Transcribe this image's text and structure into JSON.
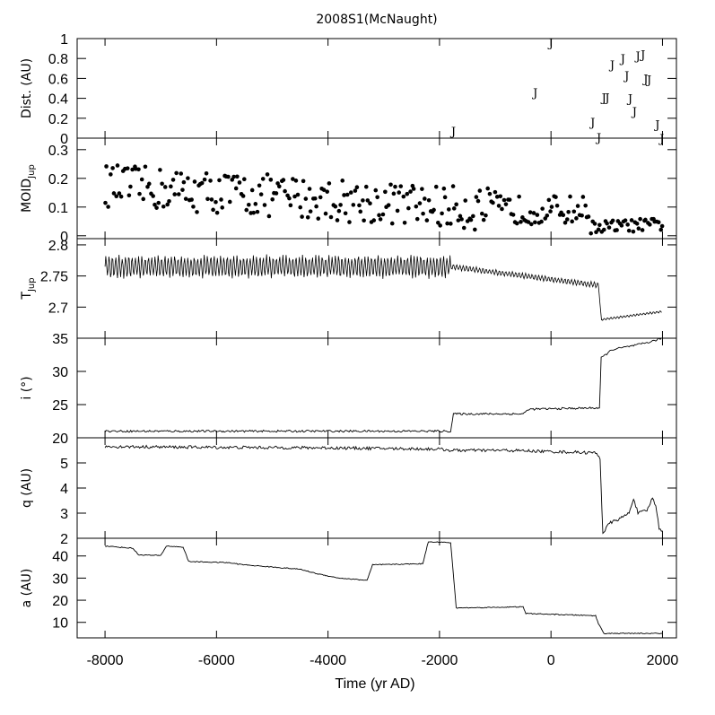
{
  "chart_data": {
    "title": "2008S1(McNaught)",
    "type": "multi-panel",
    "shared_x": {
      "label": "Time (yr AD)",
      "lim": [
        -8500,
        2250
      ],
      "ticks": [
        -8000,
        -6000,
        -4000,
        -2000,
        0,
        2000
      ],
      "tick_labels": [
        "-8000",
        "-6000",
        "-4000",
        "-2000",
        "0",
        "2000"
      ]
    },
    "panels": [
      {
        "key": "dist",
        "type": "scatter",
        "marker_label": "J",
        "ylabel": "Dist. (AU)",
        "ylim": [
          0,
          1
        ],
        "yticks": [
          0,
          0.2,
          0.4,
          0.6,
          0.8,
          1
        ],
        "ytick_labels": [
          "0",
          "0.2",
          "0.4",
          "0.6",
          "0.8",
          "1"
        ],
        "points": [
          [
            -1750,
            0.08
          ],
          [
            -280,
            0.47
          ],
          [
            0,
            0.97
          ],
          [
            750,
            0.17
          ],
          [
            860,
            0.02
          ],
          [
            950,
            0.42
          ],
          [
            1010,
            0.42
          ],
          [
            1100,
            0.75
          ],
          [
            1290,
            0.81
          ],
          [
            1360,
            0.64
          ],
          [
            1420,
            0.41
          ],
          [
            1500,
            0.28
          ],
          [
            1560,
            0.84
          ],
          [
            1650,
            0.85
          ],
          [
            1700,
            0.61
          ],
          [
            1760,
            0.6
          ],
          [
            1910,
            0.15
          ],
          [
            1990,
            0.01
          ]
        ]
      },
      {
        "key": "moid",
        "type": "scatter",
        "marker": "dot",
        "ylabel": "MOID",
        "ylabel_sub": "Jup",
        "ylim": [
          -0.01,
          0.34
        ],
        "yticks": [
          0,
          0.1,
          0.2,
          0.3
        ],
        "ytick_labels": [
          "0",
          "0.1",
          "0.2",
          "0.3"
        ],
        "trend": {
          "x_start": -8000,
          "x_break": -1000,
          "x_end": 2000,
          "center_start": 0.175,
          "center_break": 0.09,
          "center_end": 0.03
        }
      },
      {
        "key": "tjup",
        "type": "line",
        "ylabel": "T",
        "ylabel_sub": "Jup",
        "ylim": [
          2.65,
          2.81
        ],
        "yticks": [
          2.7,
          2.75,
          2.8
        ],
        "ytick_labels": [
          "2.7",
          "2.75",
          "2.8"
        ],
        "segments": [
          {
            "x": [
              -8000,
              -1800
            ],
            "level": [
              2.765,
              2.765
            ],
            "osc_amp": 0.02,
            "period": 100
          },
          {
            "x": [
              -1800,
              850
            ],
            "level": [
              2.765,
              2.735
            ],
            "osc_amp": 0.005,
            "period": 100
          },
          {
            "x": [
              850,
              910
            ],
            "level": [
              2.735,
              2.675
            ],
            "osc_amp": 0.0,
            "period": 100
          },
          {
            "x": [
              910,
              2000
            ],
            "level": [
              2.68,
              2.693
            ],
            "osc_amp": 0.002,
            "period": 100
          }
        ]
      },
      {
        "key": "incl",
        "type": "line",
        "ylabel": "i (°)",
        "ylim": [
          20,
          35
        ],
        "yticks": [
          20,
          25,
          30,
          35
        ],
        "ytick_labels": [
          "20",
          "25",
          "30",
          "35"
        ],
        "points": [
          [
            -8000,
            21.0
          ],
          [
            -1800,
            21.0
          ],
          [
            -1750,
            23.6
          ],
          [
            -500,
            23.6
          ],
          [
            -400,
            24.3
          ],
          [
            800,
            24.5
          ],
          [
            870,
            24.5
          ],
          [
            900,
            32.0
          ],
          [
            1100,
            33.3
          ],
          [
            1500,
            33.9
          ],
          [
            1800,
            34.5
          ],
          [
            2000,
            35.0
          ]
        ],
        "noise": 0.15
      },
      {
        "key": "q",
        "type": "line",
        "ylabel": "q (AU)",
        "ylim": [
          2,
          6
        ],
        "yticks": [
          2,
          3,
          4,
          5
        ],
        "ytick_labels": [
          "2",
          "3",
          "4",
          "5"
        ],
        "points": [
          [
            -8000,
            5.65
          ],
          [
            -6000,
            5.62
          ],
          [
            -4000,
            5.6
          ],
          [
            -2000,
            5.55
          ],
          [
            -1800,
            5.5
          ],
          [
            -800,
            5.5
          ],
          [
            0,
            5.45
          ],
          [
            800,
            5.4
          ],
          [
            880,
            5.2
          ],
          [
            930,
            2.2
          ],
          [
            1050,
            2.6
          ],
          [
            1250,
            2.8
          ],
          [
            1400,
            3.0
          ],
          [
            1480,
            3.6
          ],
          [
            1560,
            3.0
          ],
          [
            1720,
            3.1
          ],
          [
            1820,
            3.6
          ],
          [
            1880,
            3.3
          ],
          [
            1940,
            2.4
          ],
          [
            2000,
            2.3
          ]
        ],
        "noise": 0.06
      },
      {
        "key": "a",
        "type": "line",
        "ylabel": "a (AU)",
        "ylim": [
          3,
          48
        ],
        "yticks": [
          10,
          20,
          30,
          40
        ],
        "ytick_labels": [
          "10",
          "20",
          "30",
          "40"
        ],
        "points": [
          [
            -8000,
            44.5
          ],
          [
            -7500,
            43.5
          ],
          [
            -7400,
            40.5
          ],
          [
            -7000,
            40.2
          ],
          [
            -6900,
            44.5
          ],
          [
            -6600,
            44.0
          ],
          [
            -6500,
            37.5
          ],
          [
            -5800,
            37.0
          ],
          [
            -5500,
            36.0
          ],
          [
            -4500,
            34.0
          ],
          [
            -4200,
            32.0
          ],
          [
            -3800,
            30.0
          ],
          [
            -3300,
            29.0
          ],
          [
            -3200,
            36.0
          ],
          [
            -2300,
            36.5
          ],
          [
            -2200,
            46.5
          ],
          [
            -1800,
            46.0
          ],
          [
            -1700,
            16.5
          ],
          [
            -500,
            17.0
          ],
          [
            -450,
            14.0
          ],
          [
            800,
            13.0
          ],
          [
            850,
            9.5
          ],
          [
            950,
            5.0
          ],
          [
            2000,
            5.0
          ]
        ],
        "noise": 0.2
      }
    ],
    "grid": false,
    "legend": "none"
  }
}
